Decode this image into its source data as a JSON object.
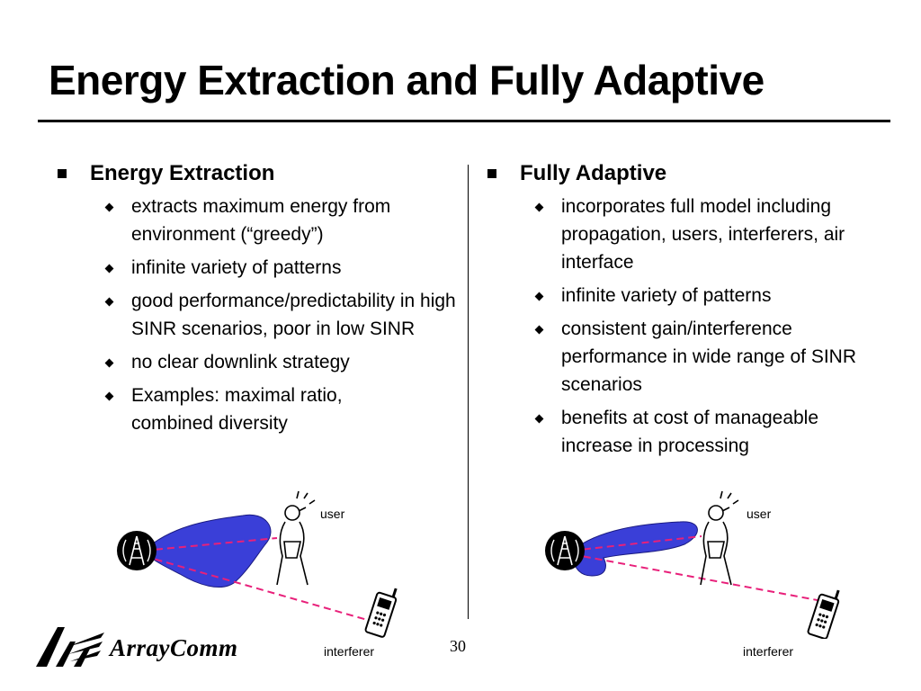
{
  "slide": {
    "title": "Energy Extraction and Fully Adaptive",
    "page_number": "30"
  },
  "left": {
    "heading": "Energy Extraction",
    "items": [
      "extracts maximum energy from environment (“greedy”)",
      "infinite variety of patterns",
      "good performance/predictability in high SINR scenarios, poor in low SINR",
      "no clear downlink strategy",
      "Examples: maximal ratio, combined diversity"
    ],
    "diagram": {
      "user_label": "user",
      "interferer_label": "interferer"
    }
  },
  "right": {
    "heading": "Fully Adaptive",
    "items": [
      "incorporates full model including propagation, users, interferers, air interface",
      "infinite variety of patterns",
      "consistent gain/interference performance in wide range of SINR scenarios",
      "benefits at cost of manageable increase in processing"
    ],
    "diagram": {
      "user_label": "user",
      "interferer_label": "interferer"
    }
  },
  "logo": {
    "text": "ArrayComm"
  },
  "colors": {
    "beam": "#3a3fd8",
    "link_line": "#e8207a",
    "text": "#000000"
  },
  "icons": [
    "base-station-icon",
    "person-phone-icon",
    "mobile-phone-icon",
    "arraycomm-logo-icon"
  ]
}
